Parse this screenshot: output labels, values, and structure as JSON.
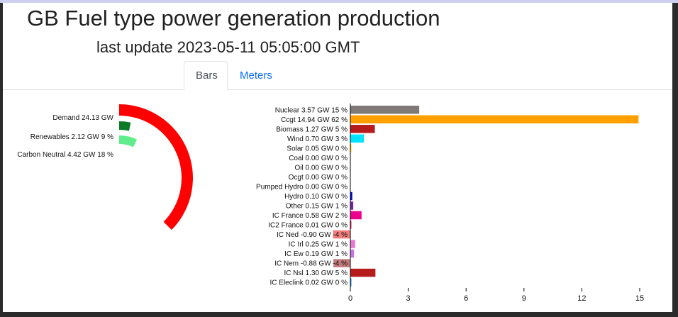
{
  "header": {
    "title": "GB Fuel type power generation production",
    "subtitle": "last update 2023-05-11 05:05:00 GMT"
  },
  "tabs": [
    {
      "label": "Bars",
      "active": true
    },
    {
      "label": "Meters",
      "active": false
    }
  ],
  "colors": {
    "tab_link": "#0d6efd",
    "demand": "#ff0000",
    "renewables": "#0b7a27",
    "carbon_neutral": "#5eed8a"
  },
  "chart_data": [
    {
      "type": "radial-bar",
      "arc_max": 24.13,
      "labels": [
        "Demand 24.13 GW",
        "Renewables 2.12 GW 9 %",
        "Carbon Neutral 4.42 GW 18 %"
      ],
      "values": [
        24.13,
        2.12,
        4.42
      ],
      "colors": [
        "#ff0000",
        "#0b7a27",
        "#5eed8a"
      ]
    },
    {
      "type": "bar",
      "orientation": "horizontal",
      "xlim": [
        -1.2,
        16.0
      ],
      "xticks": [
        0,
        3,
        6,
        9,
        12,
        15
      ],
      "categories": [
        "Nuclear 3.57 GW 15 %",
        "Ccgt 14.94 GW 62 %",
        "Biomass 1.27 GW 5 %",
        "Wind 0.70 GW 3 %",
        "Solar 0.05 GW 0 %",
        "Coal 0.00 GW 0 %",
        "Oil 0.00 GW 0 %",
        "Ocgt 0.00 GW 0 %",
        "Pumped Hydro 0.00 GW 0 %",
        "Hydro 0.10 GW 0 %",
        "Other 0.15 GW 1 %",
        "IC France 0.58 GW 2 %",
        "IC2 France 0.01 GW 0 %",
        "IC Ned -0.90 GW -4 %",
        "IC Irl 0.25 GW 1 %",
        "IC Ew 0.19 GW 1 %",
        "IC Nem -0.88 GW -4 %",
        "IC Nsl 1.30 GW 5 %",
        "IC Eleclink 0.02 GW 0 %"
      ],
      "values": [
        3.57,
        14.94,
        1.27,
        0.7,
        0.05,
        0.0,
        0.0,
        0.0,
        0.0,
        0.1,
        0.15,
        0.58,
        0.01,
        -0.9,
        0.25,
        0.19,
        -0.88,
        1.3,
        0.02
      ],
      "colors": [
        "#7f7a78",
        "#ffa000",
        "#b71c1c",
        "#00e5ff",
        "#ffd600",
        "#000000",
        "#795548",
        "#8d6e63",
        "#3949ab",
        "#0000cc",
        "#7b1fa2",
        "#ec008c",
        "#e91e63",
        "#f27d7d",
        "#e57ad0",
        "#c774e0",
        "#c27b7b",
        "#b71c1c",
        "#1e88e5"
      ]
    }
  ]
}
